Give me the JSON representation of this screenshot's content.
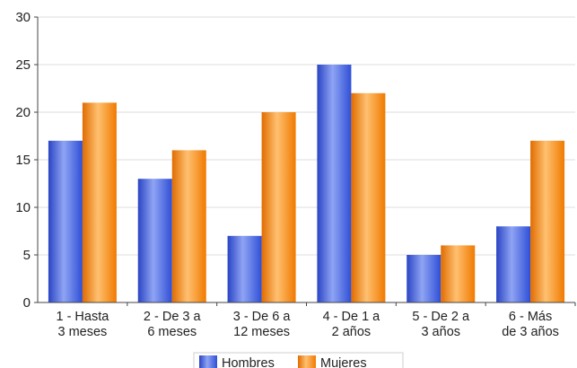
{
  "chart_data": {
    "type": "bar",
    "categories": [
      [
        "1 - Hasta",
        "3 meses"
      ],
      [
        "2 - De 3 a",
        "6 meses"
      ],
      [
        "3 - De 6 a",
        "12 meses"
      ],
      [
        "4 - De 1 a",
        "2 años"
      ],
      [
        "5 - De 2 a",
        "3 años"
      ],
      [
        "6 - Más",
        "de 3 años"
      ]
    ],
    "series": [
      {
        "name": "Hombres",
        "values": [
          17,
          13,
          7,
          25,
          5,
          8
        ]
      },
      {
        "name": "Mujeres",
        "values": [
          21,
          16,
          20,
          22,
          6,
          17
        ]
      }
    ],
    "ylim": [
      0,
      30
    ],
    "yticks": [
      0,
      5,
      10,
      15,
      20,
      25,
      30
    ],
    "grid": true,
    "legend": "bottom",
    "colors": {
      "Hombres": [
        "#2f4fd6",
        "#8fa4f4",
        "#2a44c4"
      ],
      "Mujeres": [
        "#f07a00",
        "#ffc070",
        "#e06c00"
      ]
    }
  }
}
